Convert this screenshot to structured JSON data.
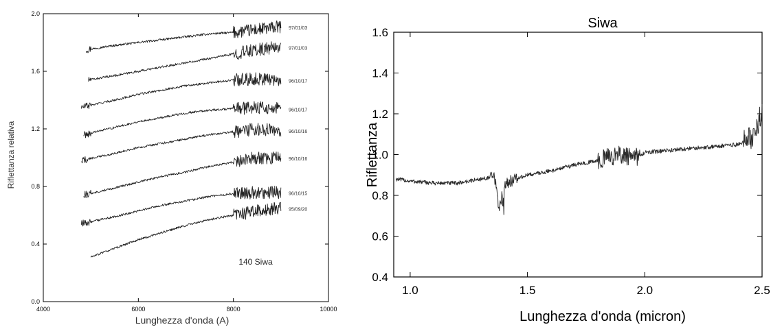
{
  "chart_data": [
    {
      "type": "line",
      "title": "",
      "xlabel": "Lunghezza d'onda (A)",
      "ylabel": "Riflettanza relativa",
      "xlim": [
        4000,
        10000
      ],
      "ylim": [
        0.0,
        2.0
      ],
      "xticks": [
        "4000",
        "6000",
        "8000",
        "10000"
      ],
      "yticks": [
        "0.0",
        "0.4",
        "0.8",
        "1.2",
        "1.6",
        "2.0"
      ],
      "annotation": "140 Siwa",
      "grid": false,
      "series": [
        {
          "name": "97/01/03",
          "x": [
            4900,
            5500,
            6000,
            6500,
            7000,
            7500,
            8000,
            8500,
            9000
          ],
          "y": [
            1.75,
            1.78,
            1.8,
            1.82,
            1.84,
            1.86,
            1.87,
            1.89,
            1.91
          ]
        },
        {
          "name": "97/01/03",
          "x": [
            4950,
            5500,
            6000,
            6500,
            7000,
            7500,
            8000,
            8500,
            9000
          ],
          "y": [
            1.54,
            1.57,
            1.6,
            1.63,
            1.66,
            1.69,
            1.72,
            1.75,
            1.77
          ]
        },
        {
          "name": "96/10/17",
          "x": [
            4800,
            5500,
            6000,
            6500,
            7000,
            7500,
            8000,
            8500,
            9000
          ],
          "y": [
            1.35,
            1.4,
            1.44,
            1.47,
            1.5,
            1.52,
            1.54,
            1.55,
            1.54
          ]
        },
        {
          "name": "96/10/17",
          "x": [
            4850,
            5500,
            6000,
            6500,
            7000,
            7500,
            8000,
            8500,
            9000
          ],
          "y": [
            1.16,
            1.21,
            1.25,
            1.28,
            1.31,
            1.33,
            1.34,
            1.35,
            1.34
          ]
        },
        {
          "name": "96/10/16",
          "x": [
            4800,
            5500,
            6000,
            6500,
            7000,
            7500,
            8000,
            8500,
            9000
          ],
          "y": [
            0.98,
            1.03,
            1.07,
            1.1,
            1.13,
            1.16,
            1.18,
            1.2,
            1.19
          ]
        },
        {
          "name": "96/10/16",
          "x": [
            4850,
            5500,
            6000,
            6500,
            7000,
            7500,
            8000,
            8500,
            9000
          ],
          "y": [
            0.74,
            0.79,
            0.83,
            0.87,
            0.9,
            0.94,
            0.97,
            1.0,
            1.0
          ]
        },
        {
          "name": "96/10/15",
          "x": [
            4800,
            5500,
            6000,
            6500,
            7000,
            7500,
            8000,
            8500,
            9000
          ],
          "y": [
            0.54,
            0.59,
            0.63,
            0.67,
            0.7,
            0.73,
            0.75,
            0.76,
            0.76
          ]
        },
        {
          "name": "95/09/20",
          "x": [
            5000,
            5500,
            6000,
            6500,
            7000,
            7500,
            8000,
            8500,
            9000
          ],
          "y": [
            0.31,
            0.37,
            0.43,
            0.48,
            0.53,
            0.57,
            0.6,
            0.63,
            0.65
          ]
        }
      ]
    },
    {
      "type": "line",
      "title": "Siwa",
      "xlabel": "Lunghezza d'onda (micron)",
      "ylabel": "Riflettanza",
      "xlim": [
        0.93,
        2.5
      ],
      "ylim": [
        0.4,
        1.6
      ],
      "xticks": [
        "1.0",
        "1.5",
        "2.0",
        "2.5"
      ],
      "yticks": [
        "0.4",
        "0.6",
        "0.8",
        "1.0",
        "1.2",
        "1.4",
        "1.6"
      ],
      "grid": false,
      "series": [
        {
          "x": [
            0.94,
            1.0,
            1.1,
            1.2,
            1.3,
            1.36,
            1.38,
            1.4,
            1.45,
            1.5,
            1.6,
            1.7,
            1.8,
            1.85,
            1.9,
            1.95,
            2.0,
            2.1,
            2.2,
            2.3,
            2.4,
            2.45,
            2.5
          ],
          "y": [
            0.88,
            0.87,
            0.86,
            0.86,
            0.88,
            0.89,
            0.72,
            0.86,
            0.88,
            0.9,
            0.92,
            0.95,
            0.97,
            0.99,
            1.0,
            0.98,
            1.01,
            1.02,
            1.03,
            1.04,
            1.05,
            1.08,
            1.2
          ]
        }
      ]
    }
  ]
}
